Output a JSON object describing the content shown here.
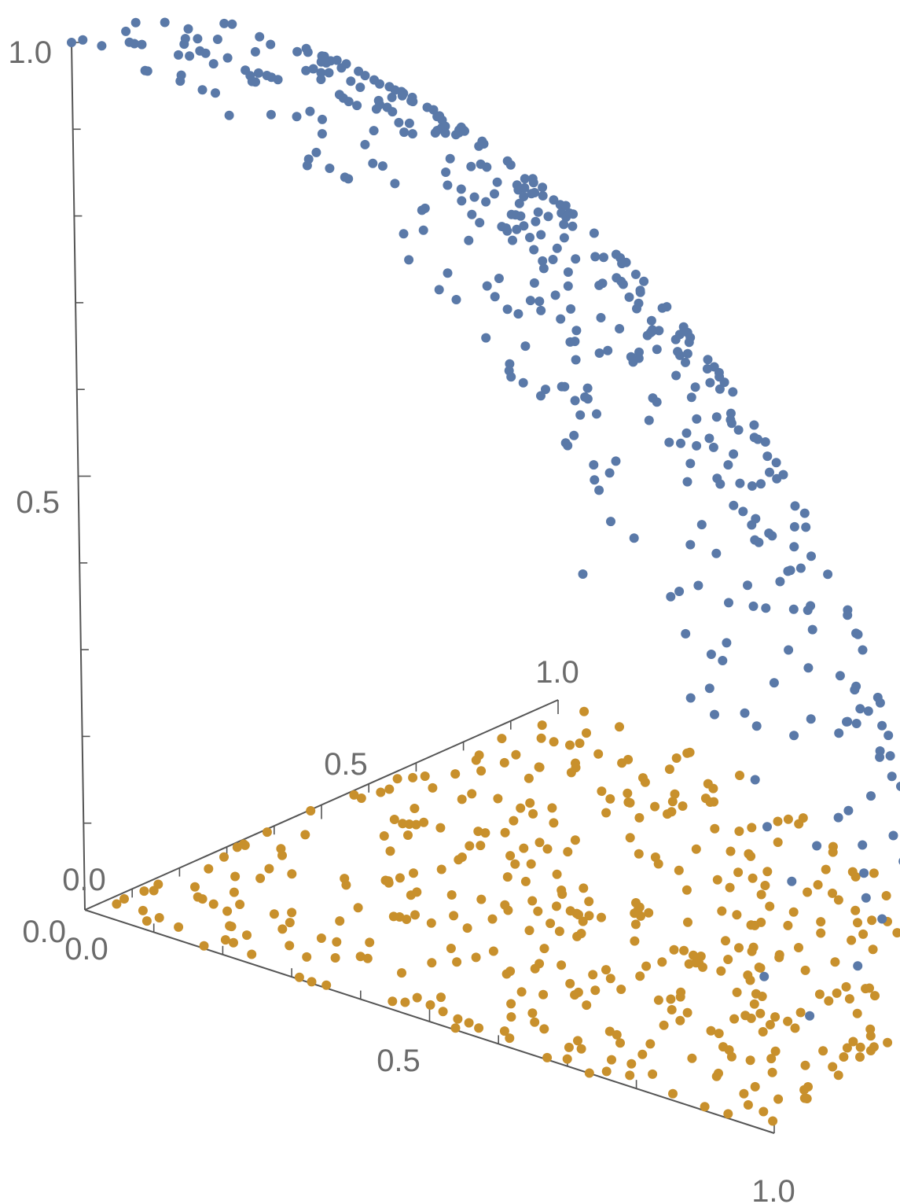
{
  "chart_data": {
    "type": "scatter",
    "projection": "3d",
    "title": "",
    "axes": {
      "x": {
        "label": "",
        "range": [
          0,
          1
        ],
        "tick_labels": [
          "0.0",
          "0.5",
          "1.0"
        ]
      },
      "y": {
        "label": "",
        "range": [
          0,
          1
        ],
        "tick_labels": [
          "0.0",
          "0.5",
          "1.0"
        ]
      },
      "z": {
        "label": "",
        "range": [
          0,
          1
        ],
        "tick_labels": [
          "0.0",
          "0.5",
          "1.0"
        ]
      }
    },
    "grid": false,
    "legend": "none",
    "series": [
      {
        "description_color": "#5a79a8",
        "points_note": "about 400 points with z > 0 lying near the unit-sphere surface inside the first octant",
        "values": [
          [
            0.0,
            0.0,
            1.0
          ],
          [
            0.03,
            0.02,
            0.999
          ],
          [
            0.05,
            0.06,
            0.997
          ],
          [
            0.1,
            0.08,
            0.992
          ],
          [
            0.18,
            0.15,
            0.972
          ],
          [
            0.25,
            0.22,
            0.943
          ],
          [
            0.3,
            0.35,
            0.888
          ],
          [
            0.38,
            0.42,
            0.823
          ],
          [
            0.45,
            0.5,
            0.74
          ],
          [
            0.52,
            0.6,
            0.608
          ],
          [
            0.6,
            0.66,
            0.452
          ],
          [
            0.68,
            0.7,
            0.218
          ]
        ]
      },
      {
        "description_color": "#c8902c",
        "points_note": "about 400 points spread uniformly over the quarter disk x^2 + y^2 <= 1, z = 0",
        "values": [
          [
            0.05,
            0.05,
            0
          ],
          [
            0.2,
            0.35,
            0
          ],
          [
            0.55,
            0.3,
            0
          ],
          [
            0.7,
            0.6,
            0
          ],
          [
            0.9,
            0.3,
            0
          ],
          [
            0.4,
            0.8,
            0
          ],
          [
            0.95,
            0.05,
            0
          ],
          [
            0.1,
            0.9,
            0
          ]
        ]
      }
    ]
  }
}
